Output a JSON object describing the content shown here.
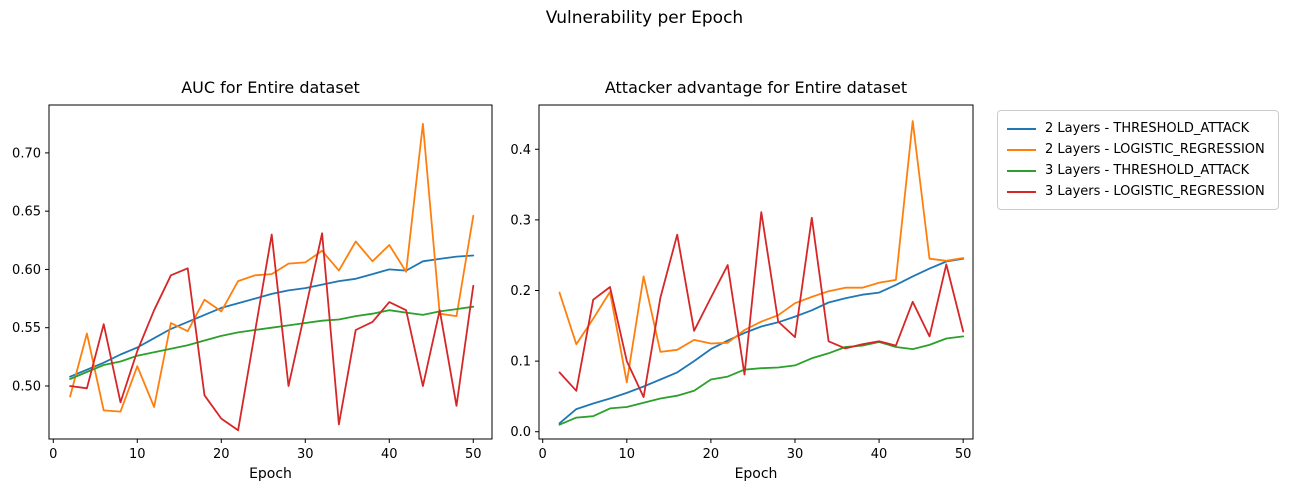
{
  "suptitle": "Vulnerability per Epoch",
  "colors": {
    "blue": "#1f77b4",
    "orange": "#ff7f0e",
    "green": "#2ca02c",
    "red": "#d62728",
    "axis": "#000000",
    "legend_border": "#cccccc",
    "background": "#ffffff"
  },
  "legend": {
    "items": [
      {
        "label": "2 Layers - THRESHOLD_ATTACK",
        "color": "#1f77b4"
      },
      {
        "label": "2 Layers - LOGISTIC_REGRESSION",
        "color": "#ff7f0e"
      },
      {
        "label": "3 Layers - THRESHOLD_ATTACK",
        "color": "#2ca02c"
      },
      {
        "label": "3 Layers - LOGISTIC_REGRESSION",
        "color": "#d62728"
      }
    ]
  },
  "chart_data": [
    {
      "type": "line",
      "title": "AUC for Entire dataset",
      "xlabel": "Epoch",
      "ylabel": "",
      "grid": false,
      "legend_position": "outside-right-of-second-plot",
      "x": [
        2,
        4,
        6,
        8,
        10,
        12,
        14,
        16,
        18,
        20,
        22,
        24,
        26,
        28,
        30,
        32,
        34,
        36,
        38,
        40,
        42,
        44,
        46,
        48,
        50
      ],
      "xlim": [
        -0.51,
        52.23
      ],
      "ylim": [
        0.4545,
        0.7411
      ],
      "xticks": [
        0,
        10,
        20,
        30,
        40,
        50
      ],
      "xtick_labels": [
        "0",
        "10",
        "20",
        "30",
        "40",
        "50"
      ],
      "yticks": [
        0.5,
        0.55,
        0.6,
        0.65,
        0.7
      ],
      "ytick_labels": [
        "0.50",
        "0.55",
        "0.60",
        "0.65",
        "0.70"
      ],
      "series": [
        {
          "name": "2 Layers - THRESHOLD_ATTACK",
          "color": "#1f77b4",
          "values": [
            0.508,
            0.514,
            0.52,
            0.527,
            0.533,
            0.541,
            0.549,
            0.555,
            0.561,
            0.567,
            0.571,
            0.575,
            0.579,
            0.582,
            0.584,
            0.587,
            0.59,
            0.592,
            0.596,
            0.6,
            0.599,
            0.607,
            0.609,
            0.611,
            0.612
          ]
        },
        {
          "name": "2 Layers - LOGISTIC_REGRESSION",
          "color": "#ff7f0e",
          "values": [
            0.491,
            0.545,
            0.479,
            0.478,
            0.517,
            0.482,
            0.554,
            0.547,
            0.574,
            0.564,
            0.59,
            0.595,
            0.596,
            0.605,
            0.606,
            0.616,
            0.599,
            0.624,
            0.607,
            0.621,
            0.598,
            0.725,
            0.562,
            0.56,
            0.646
          ]
        },
        {
          "name": "3 Layers - THRESHOLD_ATTACK",
          "color": "#2ca02c",
          "values": [
            0.506,
            0.512,
            0.518,
            0.521,
            0.526,
            0.529,
            0.532,
            0.535,
            0.539,
            0.543,
            0.546,
            0.548,
            0.55,
            0.552,
            0.554,
            0.556,
            0.557,
            0.56,
            0.562,
            0.565,
            0.563,
            0.561,
            0.564,
            0.566,
            0.568
          ]
        },
        {
          "name": "3 Layers - LOGISTIC_REGRESSION",
          "color": "#d62728",
          "values": [
            0.5,
            0.498,
            0.553,
            0.486,
            0.53,
            0.565,
            0.595,
            0.601,
            0.492,
            0.472,
            0.462,
            0.546,
            0.63,
            0.5,
            0.565,
            0.631,
            0.467,
            0.548,
            0.555,
            0.572,
            0.565,
            0.5,
            0.565,
            0.483,
            0.586
          ]
        }
      ]
    },
    {
      "type": "line",
      "title": "Attacker advantage for Entire dataset",
      "xlabel": "Epoch",
      "ylabel": "",
      "grid": false,
      "x": [
        2,
        4,
        6,
        8,
        10,
        12,
        14,
        16,
        18,
        20,
        22,
        24,
        26,
        28,
        30,
        32,
        34,
        36,
        38,
        40,
        42,
        44,
        46,
        48,
        50
      ],
      "xlim": [
        -0.44,
        51.17
      ],
      "ylim": [
        -0.0103,
        0.4627
      ],
      "xticks": [
        0,
        10,
        20,
        30,
        40,
        50
      ],
      "xtick_labels": [
        "0",
        "10",
        "20",
        "30",
        "40",
        "50"
      ],
      "yticks": [
        0.0,
        0.1,
        0.2,
        0.3,
        0.4
      ],
      "ytick_labels": [
        "0.0",
        "0.1",
        "0.2",
        "0.3",
        "0.4"
      ],
      "series": [
        {
          "name": "2 Layers - THRESHOLD_ATTACK",
          "color": "#1f77b4",
          "values": [
            0.012,
            0.032,
            0.04,
            0.047,
            0.055,
            0.064,
            0.074,
            0.084,
            0.1,
            0.117,
            0.129,
            0.14,
            0.149,
            0.155,
            0.163,
            0.172,
            0.183,
            0.189,
            0.194,
            0.197,
            0.208,
            0.22,
            0.231,
            0.241,
            0.245
          ]
        },
        {
          "name": "2 Layers - LOGISTIC_REGRESSION",
          "color": "#ff7f0e",
          "values": [
            0.197,
            0.124,
            0.16,
            0.198,
            0.07,
            0.22,
            0.113,
            0.116,
            0.13,
            0.125,
            0.126,
            0.144,
            0.156,
            0.165,
            0.182,
            0.191,
            0.199,
            0.204,
            0.204,
            0.211,
            0.215,
            0.44,
            0.245,
            0.242,
            0.246
          ]
        },
        {
          "name": "3 Layers - THRESHOLD_ATTACK",
          "color": "#2ca02c",
          "values": [
            0.01,
            0.02,
            0.022,
            0.033,
            0.035,
            0.041,
            0.047,
            0.051,
            0.058,
            0.074,
            0.078,
            0.088,
            0.09,
            0.091,
            0.094,
            0.104,
            0.111,
            0.12,
            0.122,
            0.127,
            0.12,
            0.117,
            0.123,
            0.132,
            0.135
          ]
        },
        {
          "name": "3 Layers - LOGISTIC_REGRESSION",
          "color": "#d62728",
          "values": [
            0.084,
            0.058,
            0.187,
            0.205,
            0.1,
            0.049,
            0.19,
            0.279,
            0.143,
            0.19,
            0.236,
            0.081,
            0.311,
            0.156,
            0.134,
            0.303,
            0.128,
            0.118,
            0.124,
            0.128,
            0.122,
            0.184,
            0.135,
            0.237,
            0.142
          ]
        }
      ]
    }
  ]
}
